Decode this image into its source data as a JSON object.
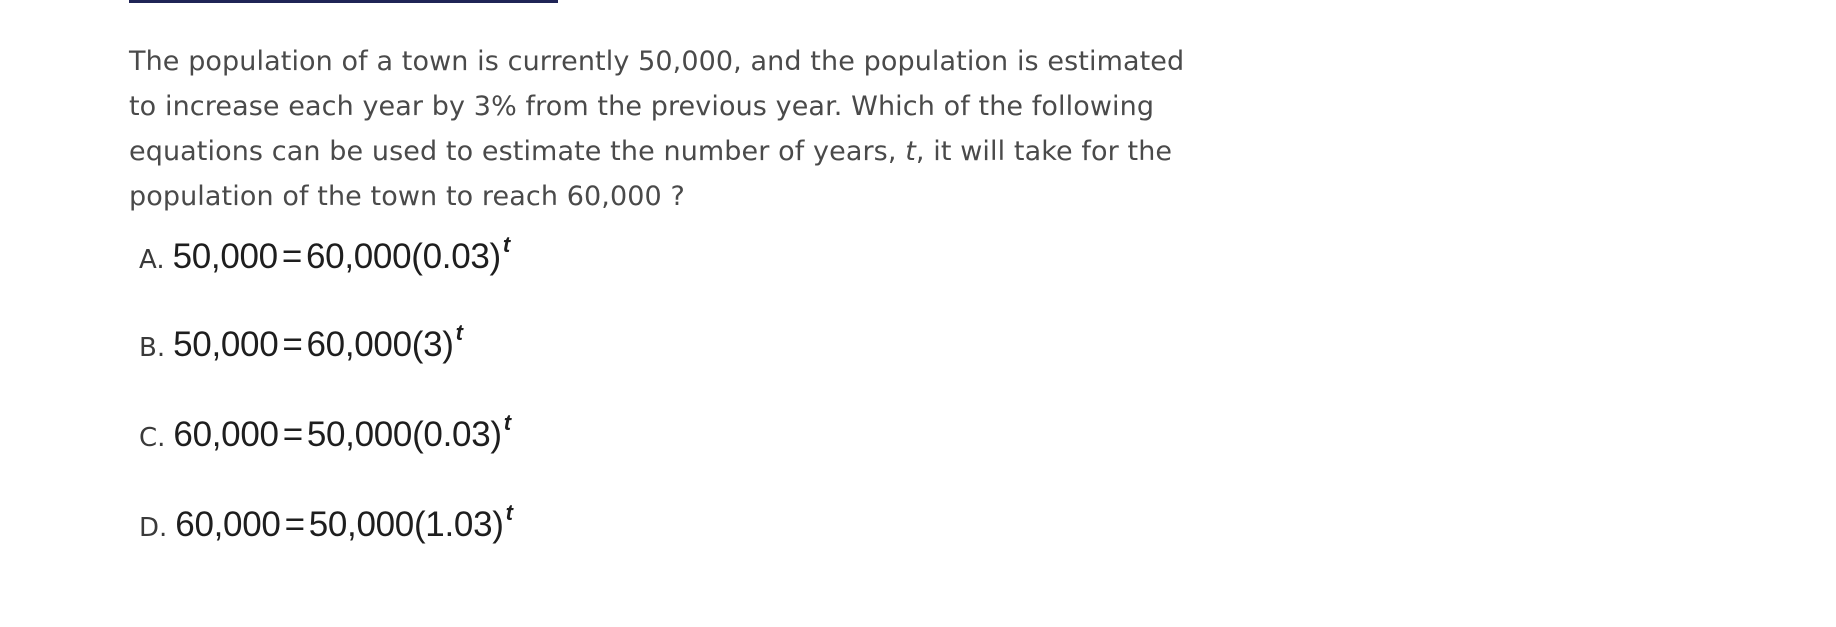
{
  "question": {
    "text_before_var": "The population of a town is currently 50,000, and the population is estimated to increase each year by 3% from the previous year. Which of the following equations can be used to estimate the number of years, ",
    "variable": "t",
    "text_after_var": ", it will take for the population of the town to reach 60,000 ?"
  },
  "choices": [
    {
      "letter": "A.",
      "lhs": "50,000",
      "equals": "=",
      "rhs": "60,000(0.03)",
      "exponent": "t"
    },
    {
      "letter": "B.",
      "lhs": "50,000",
      "equals": "=",
      "rhs": "60,000(3)",
      "exponent": "t"
    },
    {
      "letter": "C.",
      "lhs": "60,000",
      "equals": "=",
      "rhs": "50,000(0.03)",
      "exponent": "t"
    },
    {
      "letter": "D.",
      "lhs": "60,000",
      "equals": "=",
      "rhs": "50,000(1.03)",
      "exponent": "t"
    }
  ]
}
